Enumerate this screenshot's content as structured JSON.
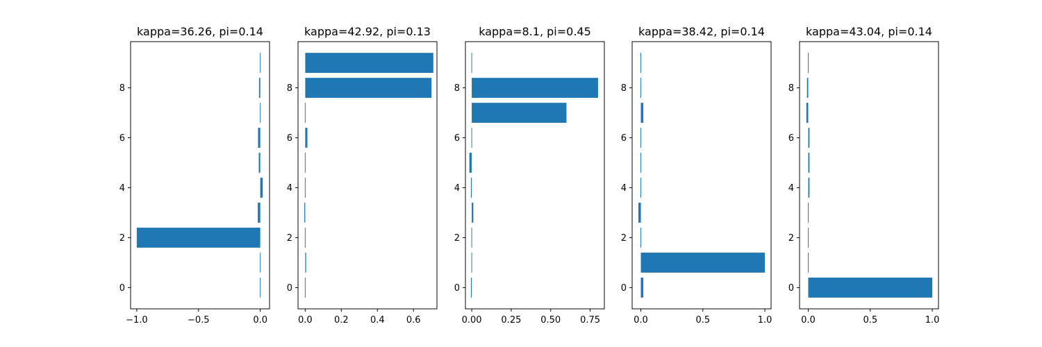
{
  "chart_data": [
    {
      "type": "bar",
      "orientation": "horizontal",
      "title": "kappa=36.26, pi=0.14",
      "categories": [
        0,
        1,
        2,
        3,
        4,
        5,
        6,
        7,
        8,
        9
      ],
      "values": [
        -0.003,
        -0.002,
        -1.0,
        -0.02,
        0.02,
        -0.012,
        -0.018,
        -0.003,
        -0.01,
        -0.002
      ],
      "xlim": [
        -1.05,
        0.075
      ],
      "ylim": [
        -0.85,
        9.85
      ],
      "xticks": [
        -1.0,
        -0.5,
        0.0
      ],
      "xtick_labels": [
        "−1.0",
        "−0.5",
        "0.0"
      ],
      "yticks": [
        0,
        2,
        4,
        6,
        8
      ],
      "ytick_labels": [
        "0",
        "2",
        "4",
        "6",
        "8"
      ],
      "bar_color": "#1f77b4"
    },
    {
      "type": "bar",
      "orientation": "horizontal",
      "title": "kappa=42.92, pi=0.13",
      "categories": [
        0,
        1,
        2,
        3,
        4,
        5,
        6,
        7,
        8,
        9
      ],
      "values": [
        -0.003,
        0.005,
        0.002,
        -0.005,
        0.002,
        0.0,
        0.012,
        0.002,
        0.7,
        0.71
      ],
      "xlim": [
        -0.04,
        0.73
      ],
      "ylim": [
        -0.85,
        9.85
      ],
      "xticks": [
        0.0,
        0.2,
        0.4,
        0.6
      ],
      "xtick_labels": [
        "0.0",
        "0.2",
        "0.4",
        "0.6"
      ],
      "yticks": [
        0,
        2,
        4,
        6,
        8
      ],
      "ytick_labels": [
        "0",
        "2",
        "4",
        "6",
        "8"
      ],
      "bar_color": "#1f77b4"
    },
    {
      "type": "bar",
      "orientation": "horizontal",
      "title": "kappa=8.1, pi=0.45",
      "categories": [
        0,
        1,
        2,
        3,
        4,
        5,
        6,
        7,
        8,
        9
      ],
      "values": [
        -0.005,
        0.003,
        0.0,
        0.01,
        -0.005,
        -0.015,
        0.0,
        0.6,
        0.8,
        -0.002
      ],
      "xlim": [
        -0.04,
        0.84
      ],
      "ylim": [
        -0.85,
        9.85
      ],
      "xticks": [
        0.0,
        0.25,
        0.5,
        0.75
      ],
      "xtick_labels": [
        "0.00",
        "0.25",
        "0.50",
        "0.75"
      ],
      "yticks": [
        0,
        2,
        4,
        6,
        8
      ],
      "ytick_labels": [
        "0",
        "2",
        "4",
        "6",
        "8"
      ],
      "bar_color": "#1f77b4"
    },
    {
      "type": "bar",
      "orientation": "horizontal",
      "title": "kappa=38.42, pi=0.14",
      "categories": [
        0,
        1,
        2,
        3,
        4,
        5,
        6,
        7,
        8,
        9
      ],
      "values": [
        0.02,
        1.0,
        -0.005,
        -0.02,
        -0.005,
        -0.005,
        0.0,
        0.02,
        -0.003,
        0.0
      ],
      "xlim": [
        -0.07,
        1.05
      ],
      "ylim": [
        -0.85,
        9.85
      ],
      "xticks": [
        0.0,
        0.5,
        1.0
      ],
      "xtick_labels": [
        "0.0",
        "0.5",
        "1.0"
      ],
      "yticks": [
        0,
        2,
        4,
        6,
        8
      ],
      "ytick_labels": [
        "0",
        "2",
        "4",
        "6",
        "8"
      ],
      "bar_color": "#1f77b4"
    },
    {
      "type": "bar",
      "orientation": "horizontal",
      "title": "kappa=43.04, pi=0.14",
      "categories": [
        0,
        1,
        2,
        3,
        4,
        5,
        6,
        7,
        8,
        9
      ],
      "values": [
        1.0,
        -0.002,
        -0.003,
        -0.003,
        0.01,
        0.01,
        0.01,
        -0.015,
        -0.01,
        0.003
      ],
      "xlim": [
        -0.07,
        1.05
      ],
      "ylim": [
        -0.85,
        9.85
      ],
      "xticks": [
        0.0,
        0.5,
        1.0
      ],
      "xtick_labels": [
        "0.0",
        "0.5",
        "1.0"
      ],
      "yticks": [
        0,
        2,
        4,
        6,
        8
      ],
      "ytick_labels": [
        "0",
        "2",
        "4",
        "6",
        "8"
      ],
      "bar_color": "#1f77b4"
    }
  ]
}
